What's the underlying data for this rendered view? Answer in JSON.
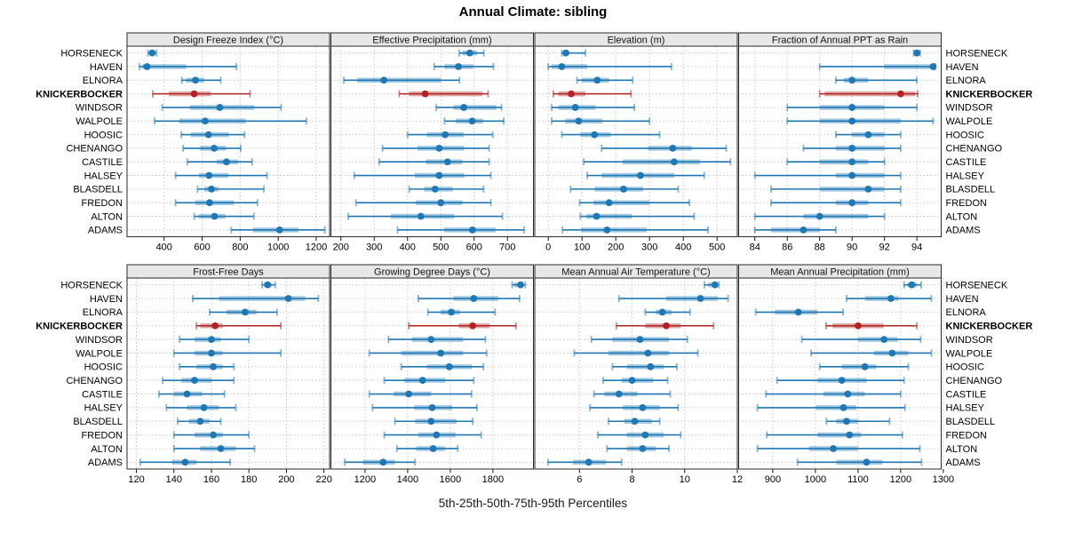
{
  "title": "Annual Climate: sibling",
  "caption": "5th-25th-50th-75th-95th Percentiles",
  "highlight_site": "KNICKERBOCKER",
  "sites": [
    "HORSENECK",
    "HAVEN",
    "ELNORA",
    "KNICKERBOCKER",
    "WINDSOR",
    "WALPOLE",
    "HOOSIC",
    "CHENANGO",
    "CASTILE",
    "HALSEY",
    "BLASDELL",
    "FREDON",
    "ALTON",
    "ADAMS"
  ],
  "colors": {
    "normal": "#1f77b4",
    "highlight": "#b22222",
    "header_bg": "#e7e7e7",
    "grid": "#c9c9c9",
    "border": "#2a2a2a",
    "text": "#000000"
  },
  "chart_data": {
    "type": "dot-whisker-trellis",
    "grid": [
      2,
      4
    ],
    "percentiles": [
      5,
      25,
      50,
      75,
      95
    ],
    "legend_position": "none",
    "panels": [
      {
        "title": "Design Freeze Index (°C)",
        "xlim": [
          205,
          1270
        ],
        "ticks": [
          400,
          600,
          800,
          1000,
          1200
        ],
        "values": [
          [
            315,
            325,
            337,
            350,
            360
          ],
          [
            270,
            285,
            310,
            515,
            780
          ],
          [
            493,
            515,
            565,
            610,
            698
          ],
          [
            340,
            425,
            558,
            645,
            852
          ],
          [
            390,
            535,
            693,
            875,
            1015
          ],
          [
            350,
            480,
            616,
            830,
            1148
          ],
          [
            490,
            540,
            633,
            740,
            823
          ],
          [
            500,
            590,
            663,
            725,
            803
          ],
          [
            522,
            676,
            728,
            790,
            863
          ],
          [
            460,
            584,
            636,
            737,
            941
          ],
          [
            576,
            611,
            649,
            685,
            925
          ],
          [
            460,
            563,
            639,
            766,
            891
          ],
          [
            558,
            584,
            665,
            722,
            872
          ],
          [
            753,
            867,
            1007,
            1107,
            1245
          ]
        ]
      },
      {
        "title": "Effective Precipitation (mm)",
        "xlim": [
          170,
          778
        ],
        "ticks": [
          200,
          300,
          400,
          500,
          600,
          700
        ],
        "values": [
          [
            555,
            565,
            587,
            609,
            629
          ],
          [
            480,
            511,
            553,
            597,
            658
          ],
          [
            209,
            249,
            329,
            500,
            556
          ],
          [
            375,
            404,
            453,
            625,
            642
          ],
          [
            486,
            538,
            569,
            667,
            682
          ],
          [
            511,
            545,
            594,
            627,
            689
          ],
          [
            400,
            458,
            513,
            569,
            656
          ],
          [
            325,
            430,
            495,
            570,
            645
          ],
          [
            315,
            455,
            520,
            565,
            645
          ],
          [
            240,
            422,
            495,
            570,
            650
          ],
          [
            405,
            450,
            483,
            536,
            628
          ],
          [
            245,
            425,
            500,
            565,
            650
          ],
          [
            222,
            350,
            440,
            540,
            685
          ],
          [
            370,
            510,
            595,
            665,
            750
          ]
        ]
      },
      {
        "title": "Elevation (m)",
        "xlim": [
          -40,
          560
        ],
        "ticks": [
          0,
          100,
          200,
          300,
          400,
          500
        ],
        "values": [
          [
            40,
            45,
            52,
            62,
            110
          ],
          [
            0,
            10,
            40,
            115,
            365
          ],
          [
            85,
            100,
            145,
            180,
            250
          ],
          [
            15,
            30,
            68,
            110,
            245
          ],
          [
            10,
            30,
            80,
            140,
            255
          ],
          [
            10,
            50,
            90,
            160,
            300
          ],
          [
            40,
            95,
            137,
            185,
            330
          ],
          [
            158,
            296,
            369,
            425,
            527
          ],
          [
            105,
            220,
            373,
            450,
            540
          ],
          [
            115,
            158,
            273,
            373,
            462
          ],
          [
            66,
            137,
            223,
            281,
            385
          ],
          [
            93,
            134,
            180,
            300,
            418
          ],
          [
            95,
            113,
            143,
            248,
            432
          ],
          [
            42,
            97,
            174,
            292,
            473
          ]
        ]
      },
      {
        "title": "Fraction of Annual PPT as Rain",
        "xlim": [
          83,
          95.5
        ],
        "ticks": [
          84,
          86,
          88,
          90,
          92,
          94
        ],
        "values": [
          [
            93.8,
            93.9,
            94,
            94.1,
            94.2
          ],
          [
            88,
            92,
            95,
            95.05,
            95.15
          ],
          [
            89,
            89.5,
            90,
            91,
            94
          ],
          [
            88,
            88.3,
            93,
            93.9,
            94.05
          ],
          [
            86,
            88,
            90,
            92,
            94
          ],
          [
            86,
            88,
            90,
            93,
            95
          ],
          [
            89,
            90,
            91,
            92,
            93
          ],
          [
            87,
            89,
            90,
            92,
            93
          ],
          [
            86,
            88,
            90,
            91,
            92
          ],
          [
            84,
            89,
            90,
            92,
            93
          ],
          [
            85,
            88,
            91,
            92,
            93
          ],
          [
            85,
            89,
            90,
            91,
            93
          ],
          [
            84,
            87,
            88,
            91,
            92
          ],
          [
            84,
            85,
            87,
            88,
            89
          ]
        ]
      },
      {
        "title": "Frost-Free Days",
        "xlim": [
          115,
          223
        ],
        "ticks": [
          120,
          140,
          160,
          180,
          200,
          220
        ],
        "values": [
          [
            187,
            188,
            190,
            192,
            194
          ],
          [
            150,
            164,
            201,
            210,
            217
          ],
          [
            159,
            168,
            178,
            184,
            195
          ],
          [
            152,
            154,
            162,
            166,
            197
          ],
          [
            143,
            151,
            160,
            165,
            180
          ],
          [
            140,
            151,
            160,
            166,
            197
          ],
          [
            143,
            152,
            161,
            166,
            172
          ],
          [
            134,
            144,
            151,
            160,
            172
          ],
          [
            132,
            140,
            147,
            155,
            167
          ],
          [
            136,
            147,
            156,
            164,
            173
          ],
          [
            142,
            148,
            154,
            159,
            165
          ],
          [
            140,
            151,
            161,
            166,
            180
          ],
          [
            140,
            154,
            165,
            173,
            183
          ],
          [
            122,
            139,
            146,
            152,
            170
          ]
        ]
      },
      {
        "title": "Growing Degree Days (°C)",
        "xlim": [
          1040,
          1990
        ],
        "ticks": [
          1200,
          1400,
          1600,
          1800
        ],
        "values": [
          [
            1890,
            1900,
            1930,
            1942,
            1952
          ],
          [
            1450,
            1615,
            1710,
            1825,
            1925
          ],
          [
            1495,
            1555,
            1605,
            1645,
            1810
          ],
          [
            1405,
            1640,
            1705,
            1785,
            1908
          ],
          [
            1310,
            1420,
            1510,
            1660,
            1765
          ],
          [
            1220,
            1370,
            1555,
            1660,
            1770
          ],
          [
            1370,
            1490,
            1595,
            1700,
            1755
          ],
          [
            1290,
            1385,
            1470,
            1575,
            1710
          ],
          [
            1220,
            1335,
            1405,
            1510,
            1700
          ],
          [
            1235,
            1430,
            1515,
            1610,
            1725
          ],
          [
            1340,
            1435,
            1510,
            1630,
            1705
          ],
          [
            1290,
            1450,
            1535,
            1625,
            1745
          ],
          [
            1350,
            1440,
            1520,
            1575,
            1635
          ],
          [
            1105,
            1190,
            1285,
            1340,
            1435
          ]
        ]
      },
      {
        "title": "Mean Annual Air Temperature (°C)",
        "xlim": [
          4.3,
          12.0
        ],
        "ticks": [
          6,
          8,
          10,
          12
        ],
        "values": [
          [
            10.75,
            10.9,
            11.15,
            11.25,
            11.3
          ],
          [
            7.5,
            9.3,
            10.6,
            11.25,
            11.65
          ],
          [
            8.5,
            8.9,
            9.15,
            9.5,
            10.2
          ],
          [
            7.4,
            8.5,
            9.3,
            9.85,
            11.1
          ],
          [
            6.45,
            7.25,
            8.3,
            9.4,
            10.1
          ],
          [
            5.8,
            7.1,
            8.6,
            9.4,
            10.5
          ],
          [
            7.25,
            7.8,
            8.7,
            9.2,
            9.7
          ],
          [
            6.9,
            7.6,
            8.0,
            8.8,
            9.35
          ],
          [
            6.55,
            6.95,
            7.5,
            8.2,
            9.45
          ],
          [
            6.4,
            7.65,
            8.4,
            9.05,
            9.75
          ],
          [
            7.1,
            7.7,
            8.1,
            8.75,
            9.05
          ],
          [
            6.7,
            7.8,
            8.5,
            9.2,
            9.85
          ],
          [
            7.05,
            7.8,
            8.4,
            8.9,
            9.4
          ],
          [
            4.8,
            5.75,
            6.35,
            7.0,
            7.6
          ]
        ]
      },
      {
        "title": "Mean Annual Precipitation (mm)",
        "xlim": [
          820,
          1295
        ],
        "ticks": [
          900,
          1000,
          1100,
          1200,
          1300
        ],
        "values": [
          [
            1208,
            1216,
            1226,
            1238,
            1248
          ],
          [
            1073,
            1116,
            1177,
            1195,
            1272
          ],
          [
            860,
            905,
            960,
            1005,
            1065
          ],
          [
            1025,
            1040,
            1100,
            1160,
            1238
          ],
          [
            968,
            1100,
            1161,
            1193,
            1247
          ],
          [
            990,
            1137,
            1180,
            1218,
            1272
          ],
          [
            1010,
            1062,
            1116,
            1143,
            1218
          ],
          [
            910,
            1005,
            1062,
            1120,
            1208
          ],
          [
            884,
            1019,
            1076,
            1116,
            1200
          ],
          [
            864,
            1001,
            1066,
            1096,
            1210
          ],
          [
            1026,
            1049,
            1073,
            1100,
            1174
          ],
          [
            886,
            1005,
            1080,
            1107,
            1204
          ],
          [
            864,
            985,
            1042,
            1100,
            1245
          ],
          [
            958,
            1049,
            1120,
            1157,
            1249
          ]
        ]
      }
    ]
  }
}
